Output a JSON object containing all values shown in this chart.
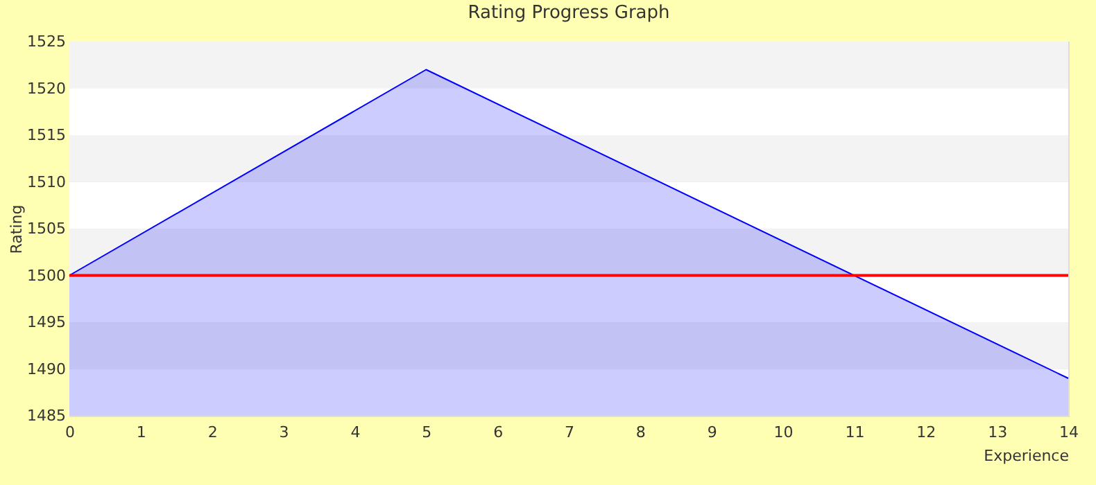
{
  "chart_data": {
    "type": "area",
    "title": "Rating Progress Graph",
    "xlabel": "Experience",
    "ylabel": "Rating",
    "x": [
      0,
      5,
      14
    ],
    "series": [
      {
        "color": "#0000ff",
        "values": [
          1500,
          1522,
          1489
        ]
      }
    ],
    "xlim": [
      0,
      14
    ],
    "xticks": [
      0,
      1,
      2,
      3,
      4,
      5,
      6,
      7,
      8,
      9,
      10,
      11,
      12,
      13,
      14
    ],
    "ylim": [
      1485,
      1525
    ],
    "yticks": [
      1485,
      1490,
      1495,
      1500,
      1505,
      1510,
      1515,
      1520,
      1525
    ],
    "ref_lines": [
      {
        "axis": "y",
        "value": 1500,
        "color": "#ff0000"
      }
    ],
    "grid": "y",
    "marker": "none",
    "line_style": "solid"
  }
}
